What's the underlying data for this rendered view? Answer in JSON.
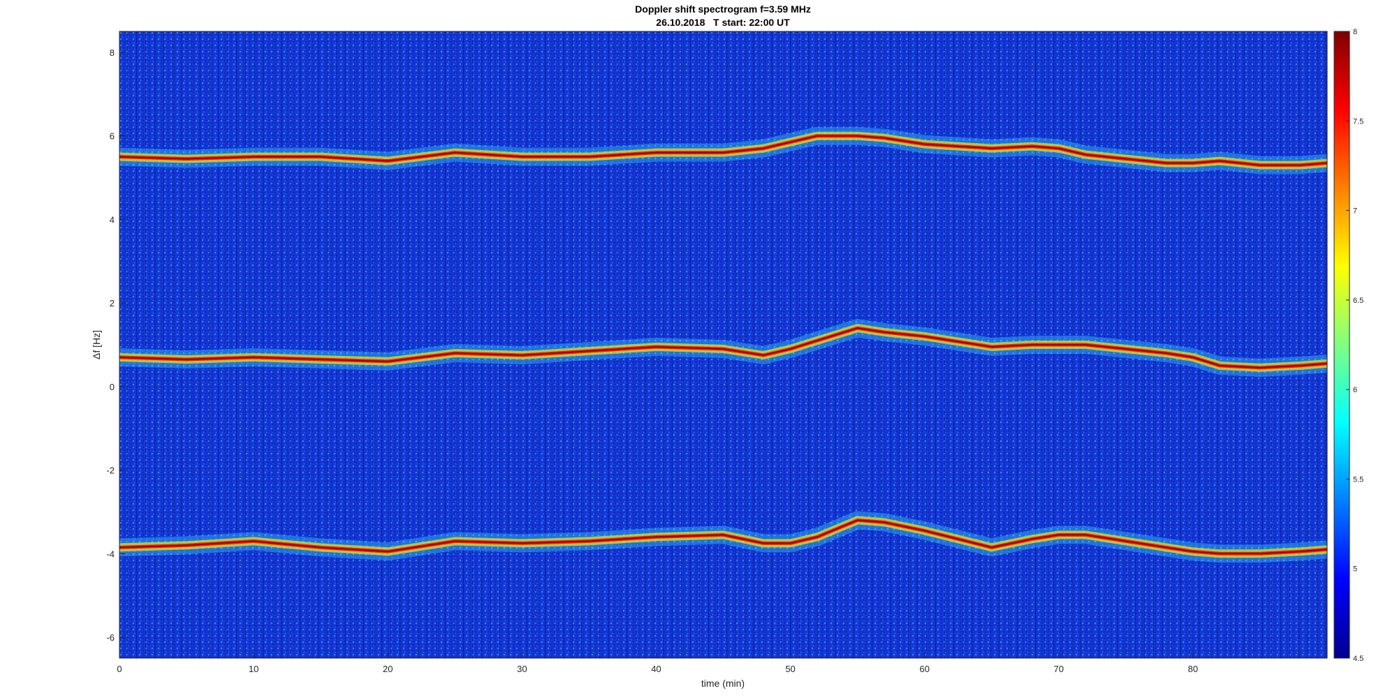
{
  "chart_data": {
    "type": "heatmap",
    "title": "Doppler shift spectrogram f=3.59 MHz",
    "subtitle": "26.10.2018   T start: 22:00 UT",
    "xlabel": "time (min)",
    "ylabel": "Δf [Hz]",
    "xlim": [
      0,
      90
    ],
    "ylim": [
      -6.5,
      8.5
    ],
    "x_ticks": [
      0,
      10,
      20,
      30,
      40,
      50,
      60,
      70,
      80
    ],
    "y_ticks": [
      -6,
      -4,
      -2,
      0,
      2,
      4,
      6,
      8
    ],
    "colormap": "jet",
    "colorbar": {
      "min": 4.5,
      "max": 8,
      "ticks": [
        4.5,
        5,
        5.5,
        6,
        6.5,
        7,
        7.5,
        8
      ]
    },
    "traces": [
      {
        "name": "",
        "x": [
          0,
          5,
          10,
          15,
          20,
          25,
          30,
          35,
          40,
          45,
          48,
          50,
          52,
          55,
          57,
          60,
          65,
          68,
          70,
          72,
          75,
          78,
          80,
          82,
          85,
          88,
          90
        ],
        "y": [
          5.5,
          5.45,
          5.5,
          5.5,
          5.4,
          5.6,
          5.5,
          5.5,
          5.6,
          5.6,
          5.7,
          5.85,
          6.0,
          6.0,
          5.95,
          5.8,
          5.7,
          5.75,
          5.7,
          5.55,
          5.45,
          5.35,
          5.35,
          5.4,
          5.3,
          5.3,
          5.35
        ]
      },
      {
        "name": "",
        "x": [
          0,
          5,
          10,
          15,
          20,
          25,
          30,
          35,
          40,
          45,
          48,
          50,
          52,
          55,
          57,
          60,
          65,
          68,
          70,
          72,
          75,
          78,
          80,
          82,
          85,
          88,
          90
        ],
        "y": [
          0.7,
          0.65,
          0.7,
          0.65,
          0.6,
          0.8,
          0.75,
          0.85,
          0.95,
          0.9,
          0.75,
          0.9,
          1.1,
          1.4,
          1.3,
          1.2,
          0.95,
          1.0,
          1.0,
          1.0,
          0.9,
          0.8,
          0.7,
          0.5,
          0.45,
          0.5,
          0.55
        ]
      },
      {
        "name": "",
        "x": [
          0,
          5,
          10,
          15,
          20,
          25,
          30,
          35,
          40,
          45,
          48,
          50,
          52,
          55,
          57,
          60,
          65,
          68,
          70,
          72,
          75,
          78,
          80,
          82,
          85,
          88,
          90
        ],
        "y": [
          -3.85,
          -3.8,
          -3.7,
          -3.85,
          -3.95,
          -3.7,
          -3.75,
          -3.7,
          -3.6,
          -3.55,
          -3.75,
          -3.75,
          -3.6,
          -3.2,
          -3.25,
          -3.45,
          -3.85,
          -3.65,
          -3.55,
          -3.55,
          -3.7,
          -3.85,
          -3.95,
          -4.0,
          -4.0,
          -3.95,
          -3.9
        ]
      }
    ]
  }
}
